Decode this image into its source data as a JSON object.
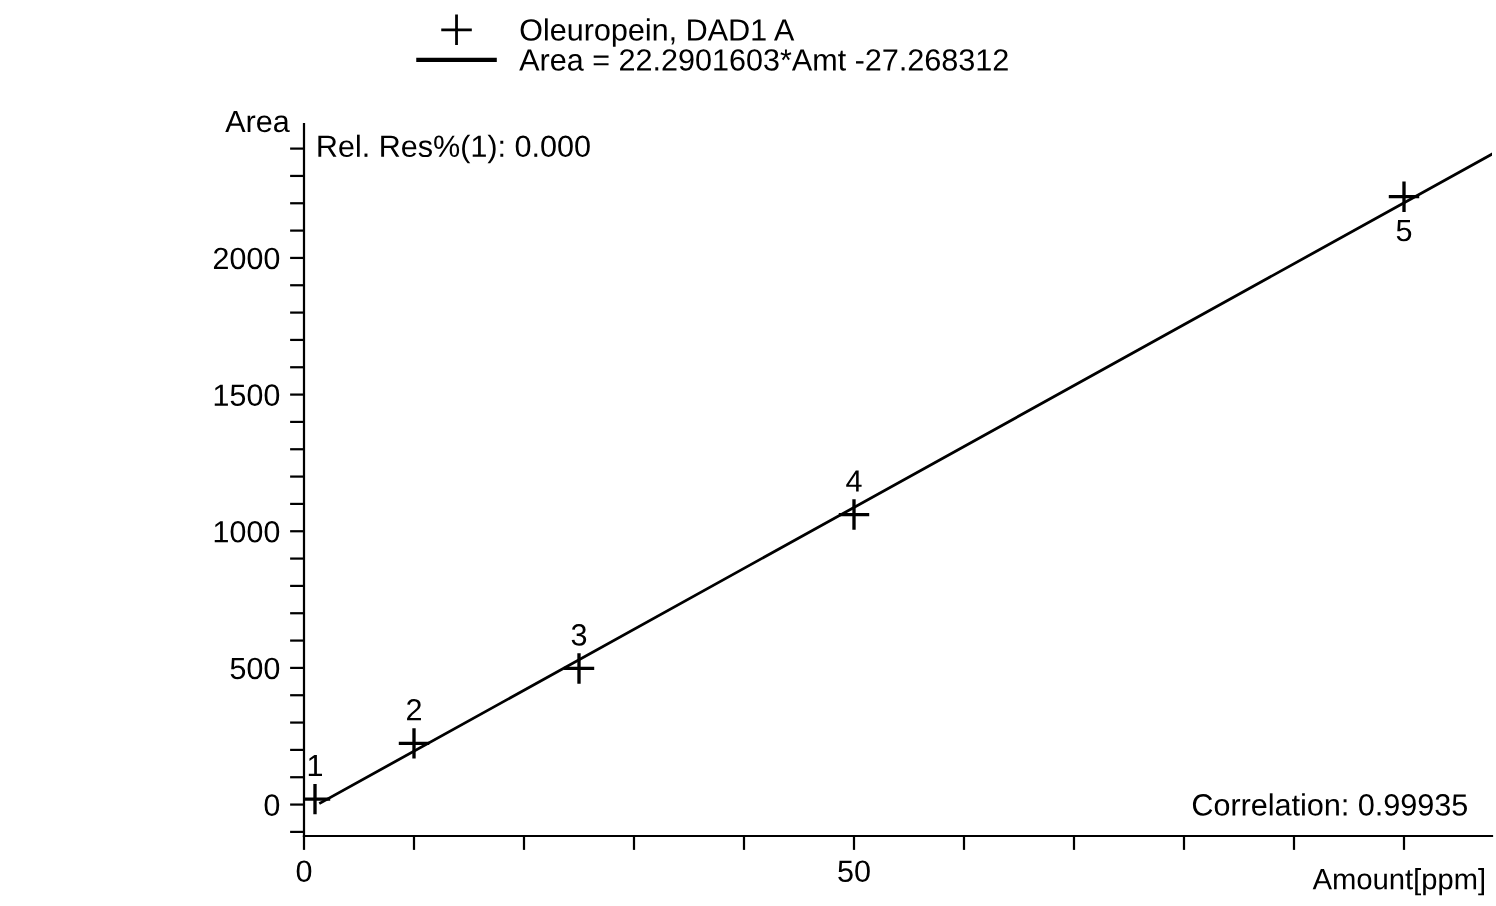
{
  "chart_data": {
    "type": "scatter",
    "ylabel": "Area",
    "xlabel": "Amount[ppm]",
    "x": [
      1,
      10,
      25,
      50,
      100
    ],
    "series": [
      {
        "name": "Oleuropein, DAD1 A",
        "color": "#000000",
        "values": [
          20,
          224,
          498,
          1061,
          2224
        ],
        "marker": "cross"
      },
      {
        "name": "Area = 22.2901603*Amt -27.268312",
        "type": "line",
        "color": "#000000",
        "x": [
          1.5,
          108
        ],
        "values": [
          6,
          2380
        ],
        "marker": "none"
      }
    ],
    "annotations": [
      {
        "text": "1",
        "x": 1,
        "y": 20
      },
      {
        "text": "2",
        "x": 10,
        "y": 224
      },
      {
        "text": "3",
        "x": 25,
        "y": 498
      },
      {
        "text": "4",
        "x": 50,
        "y": 1061
      },
      {
        "text": "5",
        "x": 100,
        "y": 2224
      },
      "Rel. Res%(1): 0.000",
      "Correlation: 0.99935"
    ],
    "xlim": [
      0,
      108
    ],
    "xticks": [
      0,
      {
        "value": 10,
        "label": null
      },
      {
        "value": 20,
        "label": null
      },
      {
        "value": 30,
        "label": null
      },
      {
        "value": 40,
        "label": null
      },
      50,
      {
        "value": 60,
        "label": null
      },
      {
        "value": 70,
        "label": null
      },
      {
        "value": 80,
        "label": null
      },
      {
        "value": 90,
        "label": null
      },
      {
        "value": 100,
        "label": null
      }
    ],
    "ylim": [
      -115,
      2490
    ],
    "yticks": [
      {
        "value": -100,
        "label": null
      },
      0,
      {
        "value": 100,
        "label": null
      },
      {
        "value": 200,
        "label": null
      },
      {
        "value": 300,
        "label": null
      },
      {
        "value": 400,
        "label": null
      },
      500,
      {
        "value": 600,
        "label": null
      },
      {
        "value": 700,
        "label": null
      },
      {
        "value": 800,
        "label": null
      },
      {
        "value": 900,
        "label": null
      },
      1000,
      {
        "value": 1100,
        "label": null
      },
      {
        "value": 1200,
        "label": null
      },
      {
        "value": 1300,
        "label": null
      },
      {
        "value": 1400,
        "label": null
      },
      1500,
      {
        "value": 1600,
        "label": null
      },
      {
        "value": 1700,
        "label": null
      },
      {
        "value": 1800,
        "label": null
      },
      {
        "value": 1900,
        "label": null
      },
      2000,
      {
        "value": 2100,
        "label": null
      },
      {
        "value": 2200,
        "label": null
      },
      {
        "value": 2300,
        "label": null
      },
      {
        "value": 2400,
        "label": null
      }
    ],
    "grid": false,
    "legend": "top"
  }
}
